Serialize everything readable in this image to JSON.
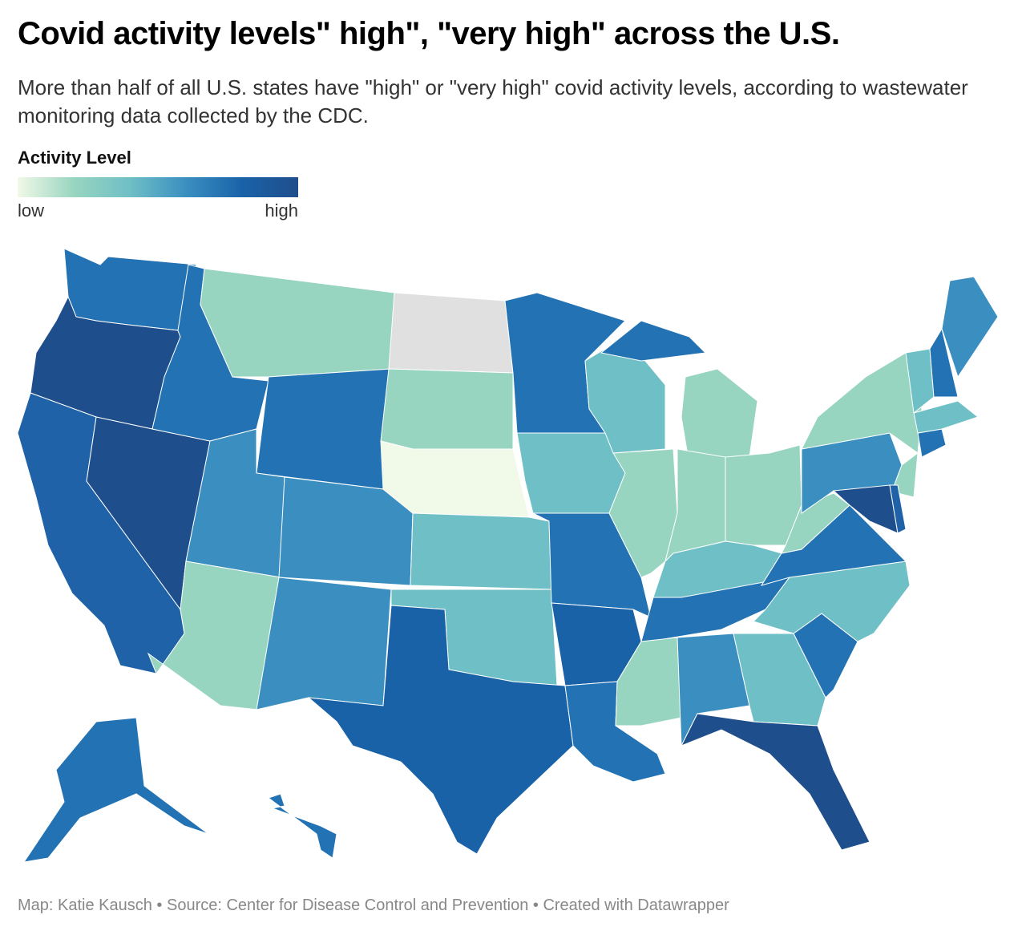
{
  "title": "Covid activity levels\" high\", \"very high\" across the U.S.",
  "subtitle": "More than half of all U.S. states have \"high\" or \"very high\" covid activity levels, according to wastewater monitoring data collected by the CDC.",
  "legend": {
    "title": "Activity Level",
    "low_label": "low",
    "high_label": "high",
    "colors": [
      "#f1f9e8",
      "#98d5c0",
      "#6fbfc6",
      "#3a8fc0",
      "#1a62a8",
      "#1f4e8c"
    ]
  },
  "map": {
    "border_color": "#ffffff",
    "regions": [
      {
        "color": "#2272b4"
      },
      {
        "color": "#1f4e8c"
      },
      {
        "color": "#1f62a8"
      },
      {
        "color": "#1f4e8c"
      },
      {
        "color": "#2272b4"
      },
      {
        "color": "#98d5c0"
      },
      {
        "color": "#2272b4"
      },
      {
        "color": "#3a8fc0"
      },
      {
        "color": "#3a8fc0"
      },
      {
        "color": "#98d5c0"
      },
      {
        "color": "#3a8fc0"
      },
      {
        "color": "#e0e0e0"
      },
      {
        "color": "#98d5c0"
      },
      {
        "color": "#f1f9e8"
      },
      {
        "color": "#6fbfc6"
      },
      {
        "color": "#6fbfc6"
      },
      {
        "color": "#1a62a8"
      },
      {
        "color": "#2272b4"
      },
      {
        "color": "#6fbfc6"
      },
      {
        "color": "#2272b4"
      },
      {
        "color": "#1a62a8"
      },
      {
        "color": "#2272b4"
      },
      {
        "color": "#6fbfc6"
      },
      {
        "color": "#98d5c0"
      },
      {
        "color": "#98d5c0"
      },
      {
        "color": "#98d5c0"
      },
      {
        "color": "#98d5c0"
      },
      {
        "color": "#6fbfc6"
      },
      {
        "color": "#2272b4"
      },
      {
        "color": "#98d5c0"
      },
      {
        "color": "#3a8fc0"
      },
      {
        "color": "#6fbfc6"
      },
      {
        "color": "#1f4e8c"
      },
      {
        "color": "#2272b4"
      },
      {
        "color": "#6fbfc6"
      },
      {
        "color": "#2272b4"
      },
      {
        "color": "#98d5c0"
      },
      {
        "color": "#3a8fc0"
      },
      {
        "color": "#98d5c0"
      },
      {
        "color": "#98d5c0"
      },
      {
        "color": "#1f4e8c"
      },
      {
        "color": "#1f62a8"
      },
      {
        "color": "#2272b4"
      },
      {
        "color": "#6fbfc6"
      },
      {
        "color": "#6fbfc6"
      },
      {
        "color": "#2272b4"
      },
      {
        "color": "#3a8fc0"
      },
      {
        "color": "#2272b4"
      },
      {
        "color": "#2272b4"
      },
      {
        "color": "#2272b4"
      }
    ]
  },
  "footer": "Map: Katie Kausch • Source: Center for Disease Control and Prevention • Created with Datawrapper"
}
